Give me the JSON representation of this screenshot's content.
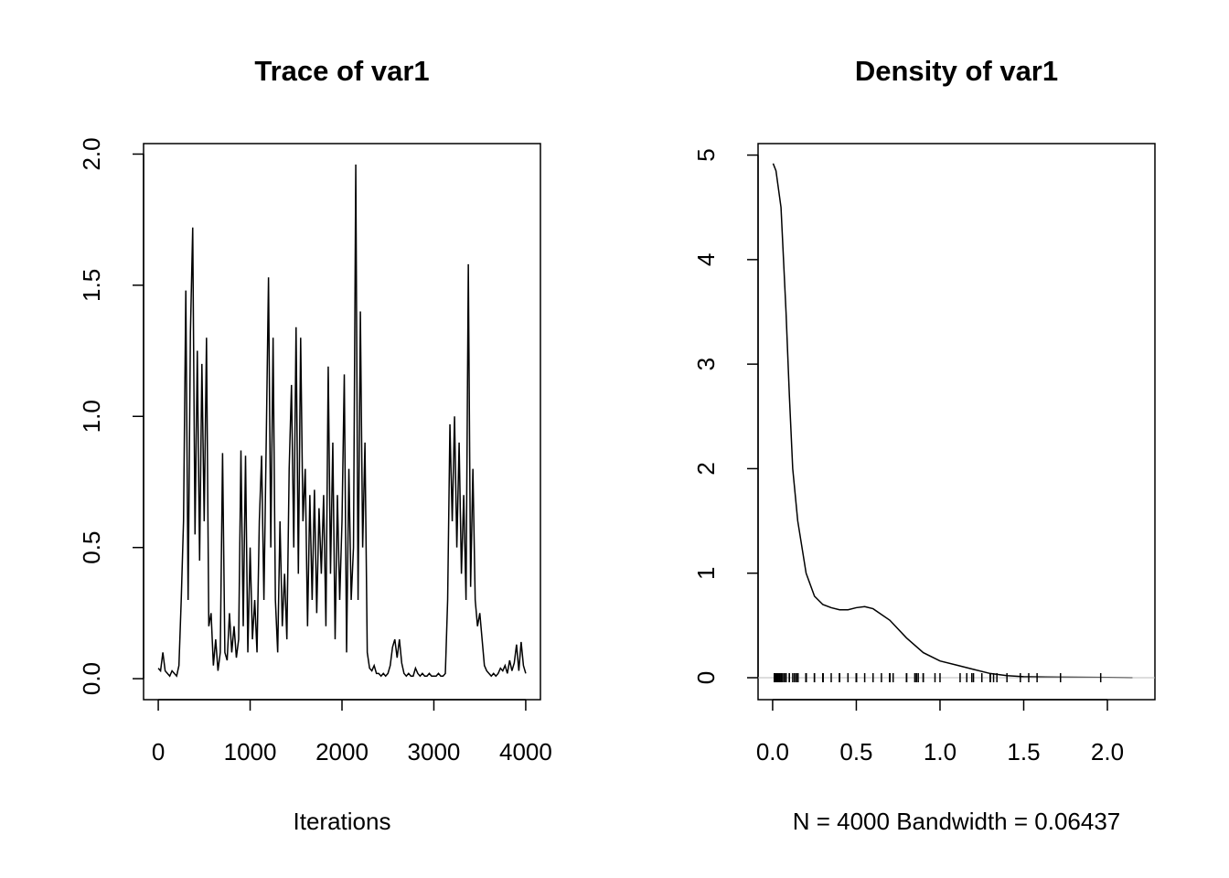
{
  "chart_data": [
    {
      "type": "line",
      "title": "Trace of var1",
      "x_label": "Iterations",
      "x": [
        0,
        25,
        50,
        75,
        100,
        125,
        150,
        175,
        200,
        225,
        250,
        275,
        300,
        325,
        350,
        375,
        400,
        425,
        450,
        475,
        500,
        525,
        550,
        575,
        600,
        625,
        650,
        675,
        700,
        725,
        750,
        775,
        800,
        825,
        850,
        875,
        900,
        925,
        950,
        975,
        1000,
        1025,
        1050,
        1075,
        1100,
        1125,
        1150,
        1175,
        1200,
        1225,
        1250,
        1275,
        1300,
        1325,
        1350,
        1375,
        1400,
        1425,
        1450,
        1475,
        1500,
        1525,
        1550,
        1575,
        1600,
        1625,
        1650,
        1675,
        1700,
        1725,
        1750,
        1775,
        1800,
        1825,
        1850,
        1875,
        1900,
        1925,
        1950,
        1975,
        2000,
        2025,
        2050,
        2075,
        2100,
        2125,
        2150,
        2175,
        2200,
        2225,
        2250,
        2275,
        2300,
        2325,
        2350,
        2375,
        2400,
        2425,
        2450,
        2475,
        2500,
        2525,
        2550,
        2575,
        2600,
        2625,
        2650,
        2675,
        2700,
        2725,
        2750,
        2775,
        2800,
        2825,
        2850,
        2875,
        2900,
        2925,
        2950,
        2975,
        3000,
        3025,
        3050,
        3075,
        3100,
        3125,
        3150,
        3175,
        3200,
        3225,
        3250,
        3275,
        3300,
        3325,
        3350,
        3375,
        3400,
        3425,
        3450,
        3475,
        3500,
        3525,
        3550,
        3575,
        3600,
        3625,
        3650,
        3675,
        3700,
        3725,
        3750,
        3775,
        3800,
        3825,
        3850,
        3875,
        3900,
        3925,
        3950,
        3975,
        4000
      ],
      "y": [
        0.04,
        0.03,
        0.1,
        0.03,
        0.02,
        0.01,
        0.03,
        0.02,
        0.01,
        0.05,
        0.3,
        0.6,
        1.48,
        0.3,
        1.32,
        1.72,
        0.55,
        1.25,
        0.45,
        1.2,
        0.6,
        1.3,
        0.2,
        0.25,
        0.05,
        0.15,
        0.03,
        0.1,
        0.86,
        0.1,
        0.07,
        0.25,
        0.1,
        0.2,
        0.08,
        0.15,
        0.87,
        0.2,
        0.85,
        0.1,
        0.5,
        0.15,
        0.3,
        0.1,
        0.6,
        0.85,
        0.3,
        0.9,
        1.53,
        0.5,
        1.3,
        0.3,
        0.1,
        0.6,
        0.2,
        0.4,
        0.15,
        0.8,
        1.12,
        0.5,
        1.34,
        0.4,
        1.3,
        0.6,
        0.8,
        0.2,
        0.7,
        0.3,
        0.72,
        0.25,
        0.65,
        0.4,
        0.7,
        0.2,
        1.19,
        0.4,
        0.9,
        0.15,
        0.7,
        0.3,
        0.6,
        1.16,
        0.1,
        0.8,
        0.3,
        0.5,
        1.96,
        0.3,
        1.4,
        0.5,
        0.9,
        0.1,
        0.04,
        0.03,
        0.05,
        0.02,
        0.02,
        0.01,
        0.02,
        0.01,
        0.02,
        0.05,
        0.12,
        0.15,
        0.08,
        0.15,
        0.06,
        0.02,
        0.01,
        0.02,
        0.01,
        0.01,
        0.04,
        0.02,
        0.01,
        0.02,
        0.01,
        0.01,
        0.02,
        0.01,
        0.01,
        0.01,
        0.02,
        0.01,
        0.01,
        0.02,
        0.3,
        0.97,
        0.6,
        1.0,
        0.5,
        0.9,
        0.4,
        0.7,
        0.3,
        1.58,
        0.35,
        0.8,
        0.3,
        0.2,
        0.25,
        0.15,
        0.05,
        0.03,
        0.02,
        0.01,
        0.02,
        0.01,
        0.02,
        0.04,
        0.03,
        0.05,
        0.02,
        0.07,
        0.03,
        0.06,
        0.13,
        0.03,
        0.14,
        0.05,
        0.02
      ],
      "color": "#000000",
      "xlim": [
        -160,
        4160
      ],
      "xticks": [
        0,
        1000,
        2000,
        3000,
        4000
      ],
      "ylim": [
        -0.08,
        2.04
      ],
      "yticks": [
        {
          "value": 0,
          "label": "0.0"
        },
        {
          "value": 0.5,
          "label": "0.5"
        },
        {
          "value": 1,
          "label": "1.0"
        },
        {
          "value": 1.5,
          "label": "1.5"
        },
        {
          "value": 2,
          "label": "2.0"
        }
      ]
    },
    {
      "type": "line",
      "title": "Density of var1",
      "x_label": "N = 4000   Bandwidth = 0.06437",
      "x": [
        0.003,
        0.02,
        0.05,
        0.08,
        0.1,
        0.12,
        0.15,
        0.2,
        0.25,
        0.3,
        0.35,
        0.4,
        0.45,
        0.5,
        0.55,
        0.6,
        0.7,
        0.8,
        0.9,
        1.0,
        1.1,
        1.2,
        1.3,
        1.4,
        1.5,
        1.7,
        2.0,
        2.15
      ],
      "y": [
        4.92,
        4.85,
        4.5,
        3.5,
        2.7,
        2.0,
        1.5,
        1.0,
        0.78,
        0.7,
        0.67,
        0.65,
        0.65,
        0.67,
        0.68,
        0.66,
        0.55,
        0.38,
        0.24,
        0.16,
        0.12,
        0.08,
        0.04,
        0.02,
        0.01,
        0.005,
        0.002,
        0
      ],
      "color": "#000000",
      "rug": true,
      "xlim": [
        -0.087,
        2.284
      ],
      "xticks": [
        {
          "value": 0,
          "label": "0.0"
        },
        {
          "value": 0.5,
          "label": "0.5"
        },
        {
          "value": 1,
          "label": "1.0"
        },
        {
          "value": 1.5,
          "label": "1.5"
        },
        {
          "value": 2,
          "label": "2.0"
        }
      ],
      "ylim": [
        -0.21,
        5.11
      ],
      "yticks": [
        0,
        1,
        2,
        3,
        4,
        5
      ]
    }
  ]
}
